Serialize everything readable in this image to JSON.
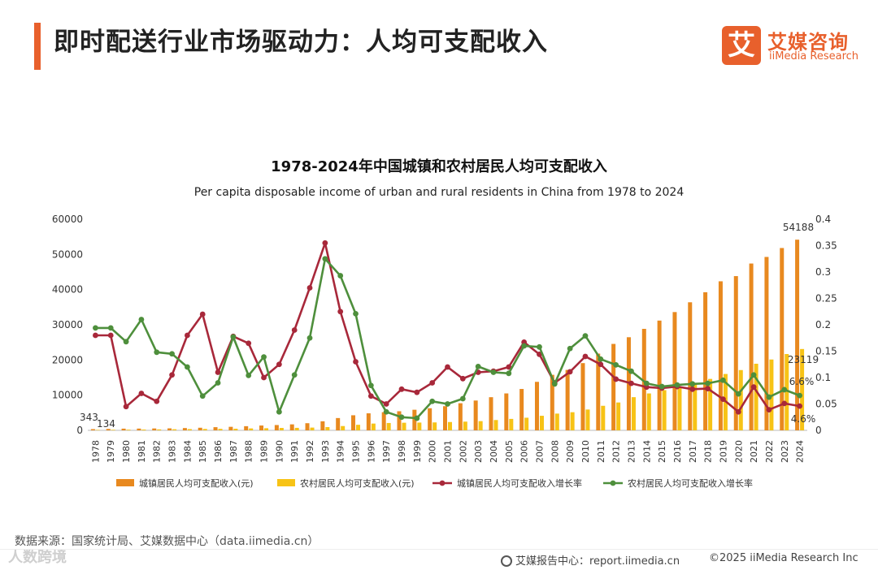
{
  "header": {
    "title": "即时配送行业市场驱动力：人均可支配收入",
    "logo_mark": "艾",
    "logo_cn": "艾媒咨询",
    "logo_en": "iiMedia Research"
  },
  "footer": {
    "source": "数据来源：国家统计局、艾媒数据中心（data.iimedia.cn）",
    "watermark": "人数跨境",
    "report_center": "艾媒报告中心：report.iimedia.cn",
    "copyright": "©2025  iiMedia Research  Inc"
  },
  "colors": {
    "accent": "#e8602c",
    "urban_bar": "#e8891f",
    "rural_bar": "#f7c316",
    "urban_line": "#a8283a",
    "rural_line": "#4e8f3c"
  },
  "chart_data": {
    "type": "bar+line",
    "title": "1978-2024年中国城镇和农村居民人均可支配收入",
    "subtitle": "Per capita disposable income of urban and rural residents in China from 1978 to 2024",
    "categories": [
      "1978",
      "1979",
      "1980",
      "1981",
      "1982",
      "1983",
      "1984",
      "1985",
      "1986",
      "1987",
      "1988",
      "1989",
      "1990",
      "1991",
      "1992",
      "1993",
      "1994",
      "1995",
      "1996",
      "1997",
      "1998",
      "1999",
      "2000",
      "2001",
      "2002",
      "2003",
      "2004",
      "2005",
      "2006",
      "2007",
      "2008",
      "2009",
      "2010",
      "2011",
      "2012",
      "2013",
      "2014",
      "2015",
      "2016",
      "2017",
      "2018",
      "2019",
      "2020",
      "2021",
      "2022",
      "2023",
      "2024"
    ],
    "y_left": {
      "min": 0,
      "max": 60000,
      "ticks": [
        0,
        10000,
        20000,
        30000,
        40000,
        50000,
        60000
      ]
    },
    "y_right": {
      "min": 0,
      "max": 0.4,
      "ticks": [
        "0",
        "0.05",
        "0.1",
        "0.15",
        "0.2",
        "0.25",
        "0.3",
        "0.35",
        "0.4"
      ]
    },
    "series": [
      {
        "name": "城镇居民人均可支配收入(元)",
        "type": "bar",
        "axis": "left",
        "values": [
          343,
          405,
          478,
          500,
          535,
          565,
          652,
          739,
          900,
          1002,
          1180,
          1374,
          1510,
          1701,
          2027,
          2577,
          3496,
          4283,
          4839,
          5160,
          5425,
          5854,
          6280,
          6860,
          7703,
          8472,
          9422,
          10493,
          11759,
          13786,
          15781,
          17175,
          19109,
          21810,
          24565,
          26467,
          28844,
          31195,
          33616,
          36396,
          39251,
          42359,
          43834,
          47412,
          49283,
          51821,
          54188
        ]
      },
      {
        "name": "农村居民人均可支配收入(元)",
        "type": "bar",
        "axis": "left",
        "values": [
          134,
          160,
          191,
          223,
          270,
          310,
          355,
          398,
          424,
          463,
          545,
          602,
          686,
          709,
          784,
          922,
          1221,
          1578,
          1926,
          2090,
          2162,
          2210,
          2253,
          2366,
          2476,
          2622,
          2936,
          3255,
          3587,
          4140,
          4761,
          5153,
          5919,
          6977,
          7917,
          9430,
          10489,
          11422,
          12363,
          13432,
          14617,
          16021,
          17131,
          18931,
          20133,
          21691,
          23119
        ]
      },
      {
        "name": "城镇居民人均可支配收入增长率",
        "type": "line",
        "axis": "right",
        "values": [
          0.18,
          0.18,
          0.045,
          0.07,
          0.055,
          0.105,
          0.18,
          0.22,
          0.11,
          0.178,
          0.165,
          0.1,
          0.125,
          0.19,
          0.27,
          0.355,
          0.225,
          0.13,
          0.065,
          0.05,
          0.078,
          0.072,
          0.09,
          0.12,
          0.098,
          0.11,
          0.112,
          0.12,
          0.167,
          0.144,
          0.09,
          0.111,
          0.14,
          0.125,
          0.097,
          0.089,
          0.082,
          0.08,
          0.083,
          0.078,
          0.079,
          0.059,
          0.035,
          0.082,
          0.039,
          0.051,
          0.046
        ]
      },
      {
        "name": "农村居民人均可支配收入增长率",
        "type": "line",
        "axis": "right",
        "values": [
          0.194,
          0.194,
          0.168,
          0.21,
          0.148,
          0.145,
          0.12,
          0.065,
          0.09,
          0.177,
          0.104,
          0.139,
          0.035,
          0.105,
          0.175,
          0.325,
          0.293,
          0.221,
          0.085,
          0.035,
          0.025,
          0.023,
          0.055,
          0.05,
          0.06,
          0.121,
          0.11,
          0.108,
          0.16,
          0.158,
          0.088,
          0.155,
          0.179,
          0.135,
          0.124,
          0.112,
          0.089,
          0.083,
          0.086,
          0.088,
          0.089,
          0.095,
          0.069,
          0.105,
          0.063,
          0.077,
          0.066
        ]
      }
    ],
    "data_labels": [
      {
        "series": 0,
        "index": 0,
        "text": "343"
      },
      {
        "series": 1,
        "index": 0,
        "text": "134"
      },
      {
        "series": 0,
        "index": 46,
        "text": "54188"
      },
      {
        "series": 1,
        "index": 46,
        "text": "23119"
      },
      {
        "series": 3,
        "index": 46,
        "text": "6.6%"
      },
      {
        "series": 2,
        "index": 46,
        "text": "4.6%"
      }
    ],
    "legend_position": "bottom"
  }
}
